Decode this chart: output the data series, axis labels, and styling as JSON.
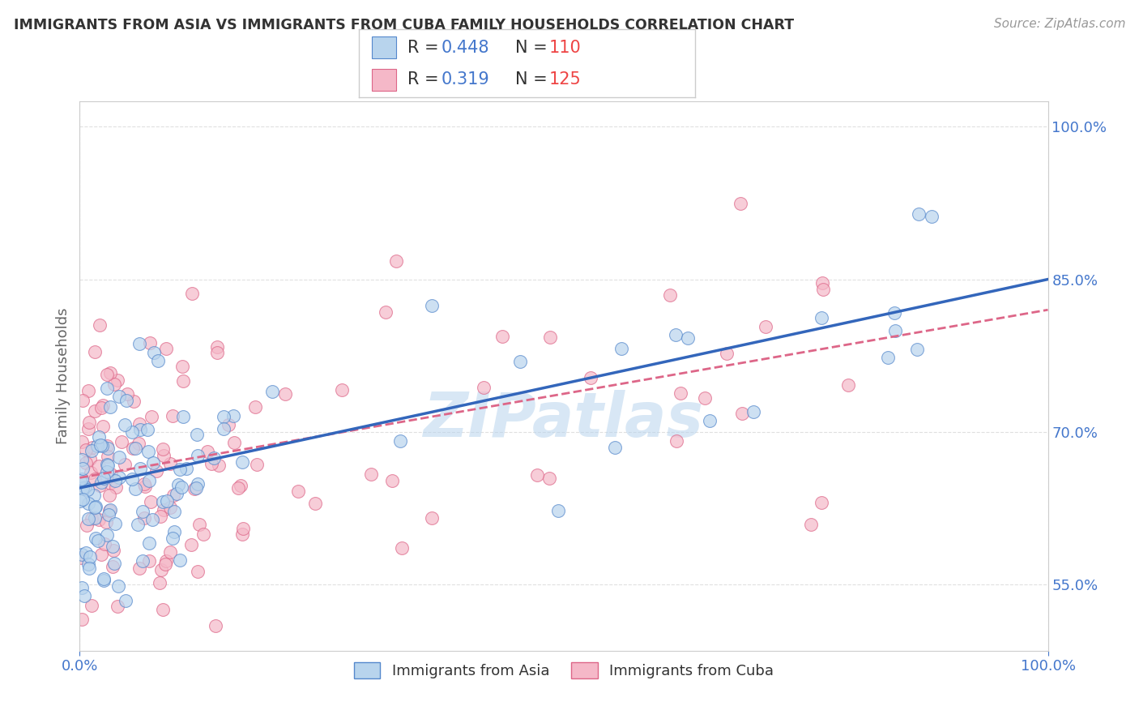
{
  "title": "IMMIGRANTS FROM ASIA VS IMMIGRANTS FROM CUBA FAMILY HOUSEHOLDS CORRELATION CHART",
  "source": "Source: ZipAtlas.com",
  "ylabel": "Family Households",
  "xlim": [
    0,
    1
  ],
  "ylim": [
    0.485,
    1.025
  ],
  "yticks": [
    0.55,
    0.7,
    0.85,
    1.0
  ],
  "ytick_labels": [
    "55.0%",
    "70.0%",
    "85.0%",
    "100.0%"
  ],
  "xtick_labels": [
    "0.0%",
    "100.0%"
  ],
  "xticks": [
    0,
    1
  ],
  "series_asia": {
    "name": "Immigrants from Asia",
    "color": "#b8d4ed",
    "edge_color": "#5588cc",
    "R": 0.448,
    "N": 110,
    "slope": 0.205,
    "intercept": 0.645,
    "line_color": "#3366bb"
  },
  "series_cuba": {
    "name": "Immigrants from Cuba",
    "color": "#f5b8c8",
    "edge_color": "#dd6688",
    "R": 0.319,
    "N": 125,
    "slope": 0.165,
    "intercept": 0.655,
    "line_color": "#dd6688"
  },
  "watermark": "ZIPatlas",
  "watermark_color": "#b8d4ed",
  "background_color": "#ffffff",
  "grid_color": "#dddddd",
  "title_color": "#333333",
  "axis_label_color": "#666666",
  "tick_color": "#4477cc",
  "source_color": "#999999",
  "legend_R_color": "#4477cc",
  "legend_N_color": "#ee4444"
}
